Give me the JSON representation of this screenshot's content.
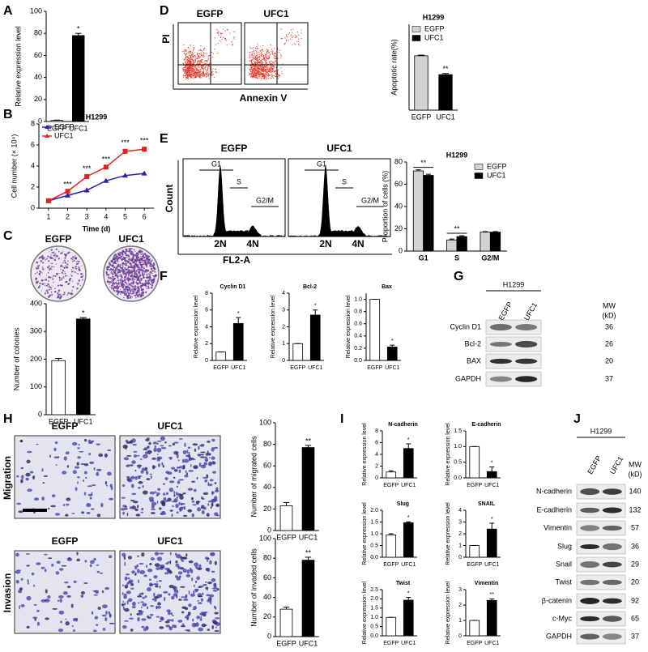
{
  "figure": {
    "panel_labels": [
      "A",
      "B",
      "C",
      "D",
      "E",
      "F",
      "G",
      "H",
      "I",
      "J"
    ],
    "c_plates": [
      "EGFP",
      "UFC1"
    ],
    "d_flow": {
      "titles": [
        "EGFP",
        "UFC1"
      ],
      "y_axis": "PI",
      "x_axis": "Annexin V"
    },
    "e_flow": {
      "titles": [
        "EGFP",
        "UFC1"
      ],
      "y_axis": "Count",
      "x_axis": "FL2-A",
      "gates": [
        "G1",
        "S",
        "G2/M"
      ],
      "ploidy": [
        "2N",
        "4N"
      ]
    },
    "g_blot": {
      "cell_line": "H1299",
      "lanes": [
        "EGFP",
        "UFC1"
      ],
      "mw_label": "MW",
      "mw_unit": "(kD)",
      "bands": [
        {
          "name": "Cyclin D1",
          "mw": 36
        },
        {
          "name": "Bcl-2",
          "mw": 26
        },
        {
          "name": "BAX",
          "mw": 20
        },
        {
          "name": "GAPDH",
          "mw": 37
        }
      ]
    },
    "h_images": [
      {
        "name": "Migration",
        "columns": [
          "EGFP",
          "UFC1"
        ]
      },
      {
        "name": "Invasion",
        "columns": [
          "EGFP",
          "UFC1"
        ]
      }
    ],
    "j_blot": {
      "cell_line": "H1299",
      "lanes": [
        "EGFP",
        "UFC1"
      ],
      "mw_label": "MW",
      "mw_unit": "(kD)",
      "bands": [
        {
          "name": "N-cadherin",
          "mw": 140
        },
        {
          "name": "E-cadherin",
          "mw": 132
        },
        {
          "name": "Vimentin",
          "mw": 57
        },
        {
          "name": "Slug",
          "mw": 36
        },
        {
          "name": "Snail",
          "mw": 29
        },
        {
          "name": "Twist",
          "mw": 20
        },
        {
          "name": "β-catenin",
          "mw": 92
        },
        {
          "name": "c-Myc",
          "mw": 65
        },
        {
          "name": "GAPDH",
          "mw": 37
        }
      ]
    }
  },
  "chart_data": [
    {
      "type": "bar",
      "ylabel": "Relative expression level",
      "categories": [
        "EGFP",
        "UFC1"
      ],
      "values": [
        1,
        78
      ],
      "errors": [
        0.3,
        2
      ],
      "colors": [
        "#ffffff",
        "#000000"
      ],
      "annotations": [
        null,
        "*"
      ],
      "ylim": [
        0,
        100
      ],
      "yticks": [
        0,
        20,
        40,
        60,
        80,
        100
      ]
    },
    {
      "type": "line",
      "title": "H1299",
      "xlabel": "Time (d)",
      "ylabel": "Cell number (× 10⁴)",
      "x": [
        1,
        2,
        3,
        4,
        5,
        6
      ],
      "series": [
        {
          "name": "EGFP",
          "color": "#2323b4",
          "values": [
            0.7,
            1.2,
            1.7,
            2.6,
            3.1,
            3.3
          ],
          "errors": [
            0.05,
            0.1,
            0.25,
            0.2,
            0.1,
            0.1
          ]
        },
        {
          "name": "UFC1",
          "color": "#e8201d",
          "values": [
            0.7,
            1.6,
            3.0,
            3.9,
            5.4,
            5.6
          ],
          "errors": [
            0.05,
            0.1,
            0.2,
            0.15,
            0.25,
            0.25
          ]
        }
      ],
      "annotations": [
        null,
        "***",
        "***",
        "***",
        "***",
        "***"
      ],
      "xlim": [
        0.5,
        6.5
      ],
      "xticks": [
        1,
        2,
        3,
        4,
        5,
        6
      ],
      "ylim": [
        0,
        8
      ],
      "yticks": [
        0,
        2,
        4,
        6,
        8
      ],
      "legend": "upper left"
    },
    {
      "type": "bar",
      "ylabel": "Number of colonies",
      "categories": [
        "EGFP",
        "UFC1"
      ],
      "values": [
        195,
        345
      ],
      "errors": [
        8,
        5
      ],
      "colors": [
        "#ffffff",
        "#000000"
      ],
      "annotations": [
        null,
        "*"
      ],
      "ylim": [
        0,
        400
      ],
      "yticks": [
        0,
        100,
        200,
        300,
        400
      ]
    },
    {
      "type": "bar",
      "title": "H1299",
      "ylabel": "Apoptotic rate(%)",
      "categories": [
        "EGFP",
        "UFC1"
      ],
      "values": [
        9.5,
        6.2
      ],
      "errors": [
        0.1,
        0.2
      ],
      "colors": [
        "#d3d3d3",
        "#000000"
      ],
      "legend_entries": [
        {
          "name": "EGFP",
          "color": "#d3d3d3"
        },
        {
          "name": "UFC1",
          "color": "#000000"
        }
      ],
      "legend": "upper left",
      "annotations": [
        null,
        "**"
      ],
      "ylim": [
        0,
        15
      ],
      "yticks": []
    },
    {
      "type": "bar",
      "title": "H1299",
      "ylabel": "Proportion of cells (%)",
      "categories": [
        "G1",
        "S",
        "G2/M"
      ],
      "series": [
        {
          "name": "EGFP",
          "color": "#d3d3d3",
          "values": [
            72,
            10,
            17
          ],
          "errors": [
            1,
            0.8,
            0.5
          ]
        },
        {
          "name": "UFC1",
          "color": "#000000",
          "values": [
            68,
            13,
            17
          ],
          "errors": [
            1,
            0.8,
            0.5
          ]
        }
      ],
      "annotations": [
        "**",
        "**",
        null
      ],
      "legend": "upper right",
      "ylim": [
        0,
        80
      ],
      "yticks": [
        0,
        20,
        40,
        60,
        80
      ]
    },
    {
      "type": "bar",
      "title": "Cyclin D1",
      "ylabel": "Relative expression level",
      "categories": [
        "EGFP",
        "UFC1"
      ],
      "values": [
        1,
        4.4
      ],
      "errors": [
        0,
        0.7
      ],
      "colors": [
        "#ffffff",
        "#000000"
      ],
      "annotations": [
        null,
        "*"
      ],
      "ylim": [
        0,
        8
      ],
      "yticks": [
        0,
        2,
        4,
        6,
        8
      ]
    },
    {
      "type": "bar",
      "title": "Bcl-2",
      "ylabel": "Relative expression level",
      "categories": [
        "EGFP",
        "UFC1"
      ],
      "values": [
        1,
        2.7
      ],
      "errors": [
        0,
        0.3
      ],
      "colors": [
        "#ffffff",
        "#000000"
      ],
      "annotations": [
        null,
        "*"
      ],
      "ylim": [
        0,
        4
      ],
      "yticks": [
        0,
        1,
        2,
        3,
        4
      ]
    },
    {
      "type": "bar",
      "title": "Bax",
      "ylabel": "Relative expression level",
      "categories": [
        "EGFP",
        "UFC1"
      ],
      "values": [
        1,
        0.22
      ],
      "errors": [
        0,
        0.03
      ],
      "colors": [
        "#ffffff",
        "#000000"
      ],
      "annotations": [
        null,
        "*"
      ],
      "ylim": [
        0,
        1.1
      ],
      "yticks": [
        {
          "value": 0,
          "label": "0.0"
        },
        0.2,
        0.4,
        0.6,
        0.8,
        {
          "value": 1,
          "label": "1.0"
        }
      ]
    },
    {
      "type": "bar",
      "ylabel": "Number of migrated cells",
      "categories": [
        "EGFP",
        "UFC1"
      ],
      "values": [
        23,
        77
      ],
      "errors": [
        3,
        2
      ],
      "colors": [
        "#ffffff",
        "#000000"
      ],
      "annotations": [
        null,
        "**"
      ],
      "ylim": [
        0,
        100
      ],
      "yticks": [
        0,
        20,
        40,
        60,
        80,
        100
      ]
    },
    {
      "type": "bar",
      "ylabel": "Number of invaded cells",
      "categories": [
        "EGFP",
        "UFC1"
      ],
      "values": [
        28,
        78
      ],
      "errors": [
        2,
        3
      ],
      "colors": [
        "#ffffff",
        "#000000"
      ],
      "annotations": [
        null,
        "**"
      ],
      "ylim": [
        0,
        100
      ],
      "yticks": [
        0,
        20,
        40,
        60,
        80,
        100
      ]
    },
    {
      "type": "bar",
      "title": "N-cadherin",
      "ylabel": "Relative expression level",
      "categories": [
        "EGFP",
        "UFC1"
      ],
      "values": [
        1,
        5
      ],
      "errors": [
        0.2,
        0.8
      ],
      "colors": [
        "#ffffff",
        "#000000"
      ],
      "annotations": [
        null,
        "*"
      ],
      "ylim": [
        0,
        8
      ],
      "yticks": [
        0,
        2,
        4,
        6,
        8
      ]
    },
    {
      "type": "bar",
      "title": "E-cadherin",
      "ylabel": "Relative expression level",
      "categories": [
        "EGFP",
        "UFC1"
      ],
      "values": [
        1,
        0.2
      ],
      "errors": [
        0,
        0.15
      ],
      "colors": [
        "#ffffff",
        "#000000"
      ],
      "annotations": [
        null,
        "*"
      ],
      "ylim": [
        0,
        1.5
      ],
      "yticks": [
        {
          "value": 0,
          "label": "0.0"
        },
        0.5,
        {
          "value": 1,
          "label": "1.0"
        },
        1.5
      ]
    },
    {
      "type": "bar",
      "title": "Slug",
      "ylabel": "Relative expression level",
      "categories": [
        "EGFP",
        "UFC1"
      ],
      "values": [
        0.95,
        1.47
      ],
      "errors": [
        0.05,
        0.04
      ],
      "colors": [
        "#ffffff",
        "#000000"
      ],
      "annotations": [
        null,
        "*"
      ],
      "ylim": [
        0,
        2
      ],
      "yticks": [
        {
          "value": 0,
          "label": "0.0"
        },
        0.5,
        {
          "value": 1,
          "label": "1.0"
        },
        1.5,
        {
          "value": 2,
          "label": "2.0"
        }
      ]
    },
    {
      "type": "bar",
      "title": "SNAIL",
      "ylabel": "Relative expression level",
      "categories": [
        "EGFP",
        "UFC1"
      ],
      "values": [
        1,
        2.4
      ],
      "errors": [
        0,
        0.5
      ],
      "colors": [
        "#ffffff",
        "#000000"
      ],
      "annotations": [
        null,
        "*"
      ],
      "ylim": [
        0,
        4
      ],
      "yticks": [
        0,
        1,
        2,
        3,
        4
      ]
    },
    {
      "type": "bar",
      "title": "Twist",
      "ylabel": "Relative expression level",
      "categories": [
        "EGFP",
        "UFC1"
      ],
      "values": [
        1,
        1.93
      ],
      "errors": [
        0,
        0.15
      ],
      "colors": [
        "#ffffff",
        "#000000"
      ],
      "annotations": [
        null,
        "*"
      ],
      "ylim": [
        0,
        2.5
      ],
      "yticks": [
        {
          "value": 0,
          "label": "0.0"
        },
        0.5,
        {
          "value": 1,
          "label": "1.0"
        },
        1.5,
        {
          "value": 2,
          "label": "2.0"
        },
        2.5
      ]
    },
    {
      "type": "bar",
      "title": "Vimentin",
      "ylabel": "Relative expression level",
      "categories": [
        "EGFP",
        "UFC1"
      ],
      "values": [
        1,
        2.3
      ],
      "errors": [
        0,
        0.1
      ],
      "colors": [
        "#ffffff",
        "#000000"
      ],
      "annotations": [
        null,
        "**"
      ],
      "ylim": [
        0,
        3
      ],
      "yticks": [
        0,
        1,
        2,
        3
      ]
    }
  ]
}
